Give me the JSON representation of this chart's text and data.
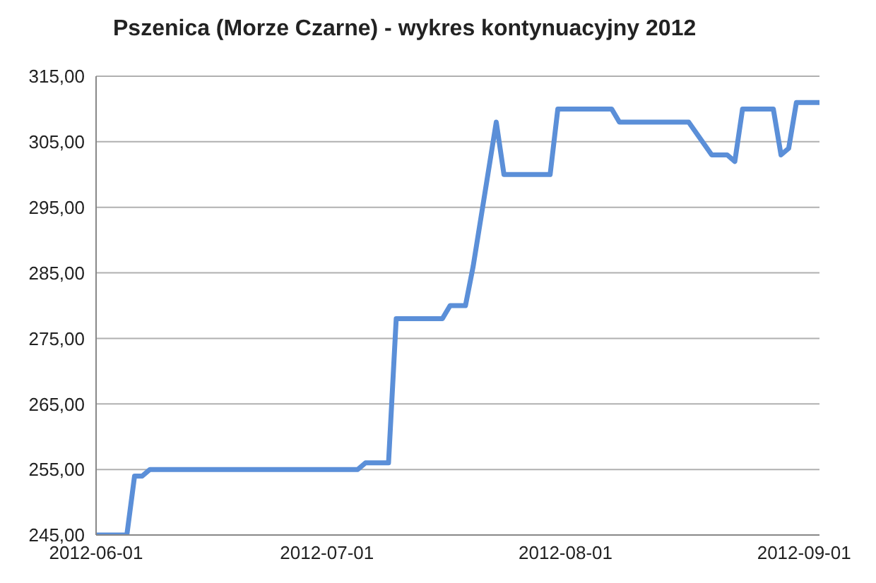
{
  "chart_data": {
    "type": "line",
    "title": "Pszenica (Morze Czarne) - wykres kontynuacyjny 2012",
    "x": [
      "2012-06-01",
      "2012-06-05",
      "2012-06-06",
      "2012-06-07",
      "2012-06-08",
      "2012-07-05",
      "2012-07-06",
      "2012-07-09",
      "2012-07-10",
      "2012-07-16",
      "2012-07-17",
      "2012-07-19",
      "2012-07-20",
      "2012-07-23",
      "2012-07-24",
      "2012-07-30",
      "2012-07-31",
      "2012-08-07",
      "2012-08-08",
      "2012-08-17",
      "2012-08-20",
      "2012-08-22",
      "2012-08-23",
      "2012-08-24",
      "2012-08-28",
      "2012-08-29",
      "2012-08-30",
      "2012-08-31",
      "2012-09-03"
    ],
    "series": [
      {
        "color": "#5b8fd8",
        "values": [
          245,
          245,
          254,
          254,
          255,
          255,
          256,
          256,
          278,
          278,
          280,
          280,
          286,
          308,
          300,
          300,
          310,
          310,
          308,
          308,
          303,
          303,
          302,
          310,
          310,
          303,
          304,
          311,
          311
        ]
      }
    ],
    "xlim": [
      "2012-06-01",
      "2012-09-03"
    ],
    "xticks": [
      {
        "value": "2012-06-01",
        "label": "2012-06-01"
      },
      {
        "value": "2012-07-01",
        "label": "2012-07-01"
      },
      {
        "value": "2012-08-01",
        "label": "2012-08-01"
      },
      {
        "value": "2012-09-01",
        "label": "2012-09-01"
      }
    ],
    "ylim": [
      245,
      315
    ],
    "yticks": [
      {
        "value": 245,
        "label": "245,00"
      },
      {
        "value": 255,
        "label": "255,00"
      },
      {
        "value": 265,
        "label": "265,00"
      },
      {
        "value": 275,
        "label": "275,00"
      },
      {
        "value": 285,
        "label": "285,00"
      },
      {
        "value": 295,
        "label": "295,00"
      },
      {
        "value": 305,
        "label": "305,00"
      },
      {
        "value": 315,
        "label": "315,00"
      }
    ],
    "grid": "y",
    "legend": false,
    "marker": "none",
    "line_style": "solid"
  }
}
